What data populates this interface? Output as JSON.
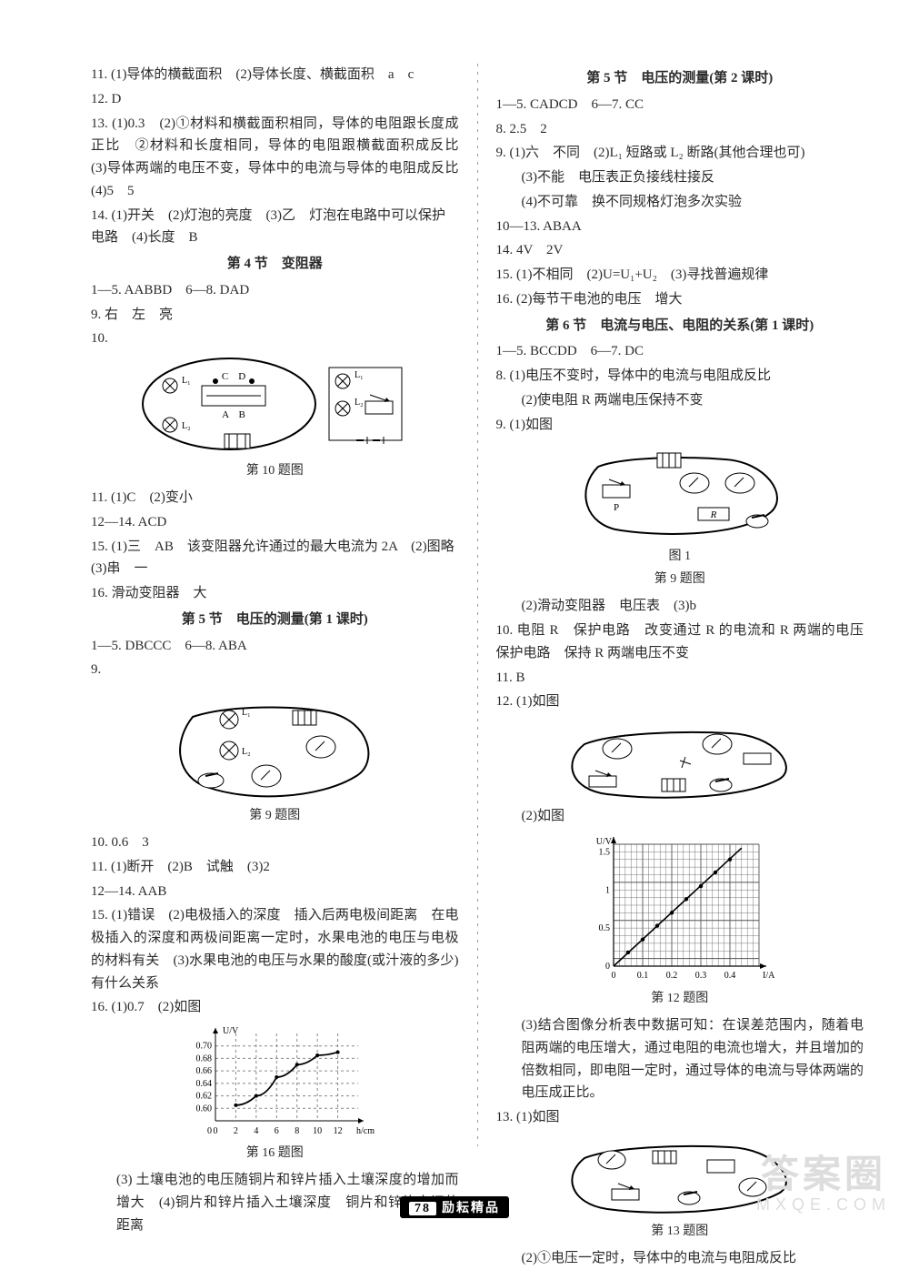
{
  "left": {
    "i11": "11. (1)导体的横截面积　(2)导体长度、横截面积　a　c",
    "i12": "12. D",
    "i13": "13. (1)0.3　(2)①材料和横截面积相同，导体的电阻跟长度成正比　②材料和长度相同，导体的电阻跟横截面积成反比　(3)导体两端的电压不变，导体中的电流与导体的电阻成反比　(4)5　5",
    "i14": "14. (1)开关　(2)灯泡的亮度　(3)乙　灯泡在电路中可以保护电路　(4)长度　B",
    "sec4": "第 4 节　变阻器",
    "s4_1_5": "1—5. AABBD　6—8. DAD",
    "s4_9": "9. 右　左　亮",
    "s4_10": "10.",
    "fig10_cap": "第 10 题图",
    "s4_11": "11. (1)C　(2)变小",
    "s4_12_14": "12—14. ACD",
    "s4_15": "15. (1)三　AB　该变阻器允许通过的最大电流为 2A　(2)图略　(3)串　一",
    "s4_16": "16. 滑动变阻器　大",
    "sec5a": "第 5 节　电压的测量(第 1 课时)",
    "s5a_1_5": "1—5. DBCCC　6—8. ABA",
    "s5a_9": "9.",
    "fig9a_cap": "第 9 题图",
    "s5a_10": "10. 0.6　3",
    "s5a_11": "11. (1)断开　(2)B　试触　(3)2",
    "s5a_12_14": "12—14. AAB",
    "s5a_15": "15. (1)错误　(2)电极插入的深度　插入后两电极间距离　在电极插入的深度和两极间距离一定时，水果电池的电压与电极的材料有关　(3)水果电池的电压与水果的酸度(或汁液的多少)有什么关系",
    "s5a_16": "16. (1)0.7　(2)如图",
    "fig16_cap": "第 16 题图",
    "s5a_16_cont": "(3) 土壤电池的电压随铜片和锌片插入土壤深度的增加而增大　(4)铜片和锌片插入土壤深度　铜片和锌片之间的距离",
    "chart16": {
      "type": "line",
      "xlabel": "h/cm",
      "ylabel": "U/V",
      "xlim": [
        0,
        14
      ],
      "ylim": [
        0.58,
        0.72
      ],
      "xticks": [
        0,
        2,
        4,
        6,
        8,
        10,
        12
      ],
      "yticks": [
        0.6,
        0.62,
        0.64,
        0.66,
        0.68,
        0.7
      ],
      "points": [
        [
          2,
          0.605
        ],
        [
          4,
          0.62
        ],
        [
          6,
          0.65
        ],
        [
          8,
          0.67
        ],
        [
          10,
          0.685
        ],
        [
          12,
          0.69
        ]
      ],
      "line_color": "#000000",
      "grid_color": "#888888",
      "bg": "#ffffff",
      "label_fontsize": 10
    }
  },
  "right": {
    "sec5b": "第 5 节　电压的测量(第 2 课时)",
    "s5b_1_5": "1—5. CADCD　6—7. CC",
    "s5b_8": "8. 2.5　2",
    "s5b_9": "9. (1)六　不同　(2)L₁ 短路或 L₂ 断路(其他合理也可)",
    "s5b_9b": "(3)不能　电压表正负接线柱接反",
    "s5b_9c": "(4)不可靠　换不同规格灯泡多次实验",
    "s5b_10_13": "10—13. ABAA",
    "s5b_14": "14. 4V　2V",
    "s5b_15": "15. (1)不相同　(2)U=U₁+U₂　(3)寻找普遍规律",
    "s5b_16": "16. (2)每节干电池的电压　增大",
    "sec6": "第 6 节　电流与电压、电阻的关系(第 1 课时)",
    "s6_1_5": "1—5. BCCDD　6—7. DC",
    "s6_8": "8. (1)电压不变时，导体中的电流与电阻成反比",
    "s6_8b": "(2)使电阻 R 两端电压保持不变",
    "s6_9": "9. (1)如图",
    "fig9b_label": "图 1",
    "fig9b_cap": "第 9 题图",
    "s6_9b": "(2)滑动变阻器　电压表　(3)b",
    "s6_10": "10. 电阻 R　保护电路　改变通过 R 的电流和 R 两端的电压　保护电路　保持 R 两端电压不变",
    "s6_11": "11. B",
    "s6_12": "12. (1)如图",
    "s6_12b": "(2)如图",
    "chart12": {
      "type": "scatter-line",
      "xlabel": "I/A",
      "ylabel": "U/V",
      "xlim": [
        0,
        0.5
      ],
      "ylim": [
        0,
        1.6
      ],
      "xticks": [
        0,
        0.1,
        0.2,
        0.3,
        0.4
      ],
      "yticks": [
        0,
        0.5,
        1.0,
        1.5
      ],
      "points": [
        [
          0.05,
          0.18
        ],
        [
          0.1,
          0.35
        ],
        [
          0.15,
          0.53
        ],
        [
          0.2,
          0.7
        ],
        [
          0.25,
          0.88
        ],
        [
          0.3,
          1.05
        ],
        [
          0.35,
          1.23
        ],
        [
          0.4,
          1.4
        ]
      ],
      "line_color": "#000000",
      "grid_color": "#555555",
      "bg": "#ffffff",
      "label_fontsize": 10
    },
    "fig12_cap": "第 12 题图",
    "s6_12c": "(3)结合图像分析表中数据可知：在误差范围内，随着电阻两端的电压增大，通过电阻的电流也增大，并且增加的倍数相同，即电阻一定时，通过导体的电流与导体两端的电压成正比。",
    "s6_13": "13. (1)如图",
    "fig13_cap": "第 13 题图",
    "s6_13b": "(2)①电压一定时，导体中的电流与电阻成反比"
  },
  "footer": {
    "page": "78",
    "brand": "励耘精品"
  },
  "watermark": {
    "l1": "答案圈",
    "l2": "MXQE.COM"
  }
}
